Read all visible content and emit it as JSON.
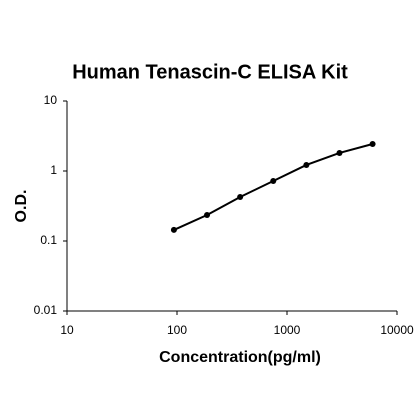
{
  "chart_data": {
    "type": "line",
    "title": "Human Tenascin-C ELISA Kit",
    "x_label": "Concentration(pg/ml)",
    "y_label": "O.D.",
    "x": [
      93.75,
      187.5,
      375,
      750,
      1500,
      3000,
      6000
    ],
    "series": [
      {
        "name": "O.D.",
        "color": "#000000",
        "values": [
          0.144,
          0.235,
          0.425,
          0.72,
          1.22,
          1.81,
          2.43
        ]
      }
    ],
    "xlim": [
      10,
      10000
    ],
    "xticks": [
      10,
      100,
      1000,
      10000
    ],
    "ylim": [
      0.01,
      10
    ],
    "yticks": [
      0.01,
      0.1,
      1,
      10
    ],
    "x_log": true,
    "y_log": true,
    "grid": false,
    "markers": true
  }
}
